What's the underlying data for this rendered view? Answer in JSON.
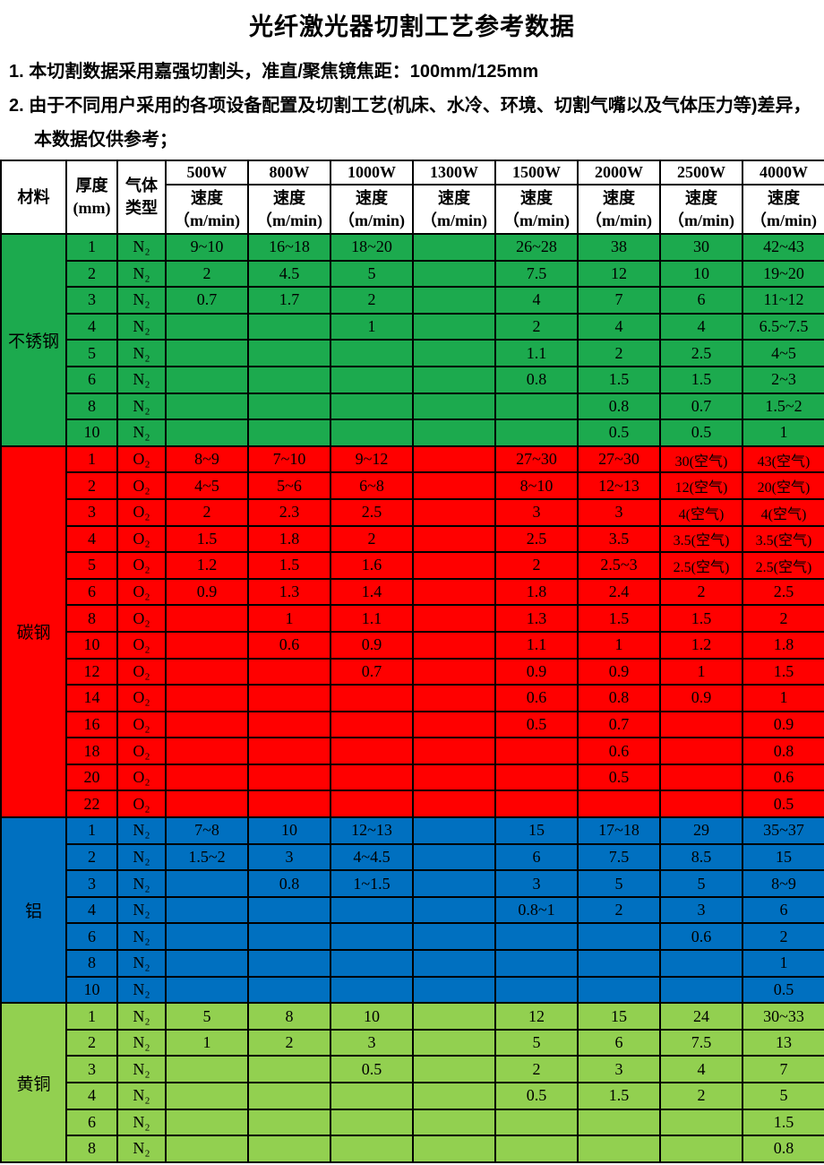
{
  "page": {
    "title": "光纤激光器切割工艺参考数据",
    "notes": [
      "1. 本切割数据采用嘉强切割头，准直/聚焦镜焦距：100mm/125mm",
      "2. 由于不同用户采用的各项设备配置及切割工艺(机床、水冷、环境、切割气嘴以及气体压力等)差异，本数据仅供参考；"
    ]
  },
  "table": {
    "header": {
      "material": "材料",
      "thickness_lines": [
        "厚度",
        "(mm)"
      ],
      "gas_lines": [
        "气体",
        "类型"
      ],
      "powers": [
        "500W",
        "800W",
        "1000W",
        "1300W",
        "1500W",
        "2000W",
        "2500W",
        "4000W"
      ],
      "speed_lines": [
        "速度",
        "（m/min)"
      ]
    },
    "sections": [
      {
        "material": "不锈钢",
        "color": "#1CAA4E",
        "rows": [
          {
            "t": "1",
            "gas": "N₂",
            "speeds": [
              "9~10",
              "16~18",
              "18~20",
              "",
              "26~28",
              "38",
              "30",
              "42~43"
            ]
          },
          {
            "t": "2",
            "gas": "N₂",
            "speeds": [
              "2",
              "4.5",
              "5",
              "",
              "7.5",
              "12",
              "10",
              "19~20"
            ]
          },
          {
            "t": "3",
            "gas": "N₂",
            "speeds": [
              "0.7",
              "1.7",
              "2",
              "",
              "4",
              "7",
              "6",
              "11~12"
            ]
          },
          {
            "t": "4",
            "gas": "N₂",
            "speeds": [
              "",
              "",
              "1",
              "",
              "2",
              "4",
              "4",
              "6.5~7.5"
            ]
          },
          {
            "t": "5",
            "gas": "N₂",
            "speeds": [
              "",
              "",
              "",
              "",
              "1.1",
              "2",
              "2.5",
              "4~5"
            ]
          },
          {
            "t": "6",
            "gas": "N₂",
            "speeds": [
              "",
              "",
              "",
              "",
              "0.8",
              "1.5",
              "1.5",
              "2~3"
            ]
          },
          {
            "t": "8",
            "gas": "N₂",
            "speeds": [
              "",
              "",
              "",
              "",
              "",
              "0.8",
              "0.7",
              "1.5~2"
            ]
          },
          {
            "t": "10",
            "gas": "N₂",
            "speeds": [
              "",
              "",
              "",
              "",
              "",
              "0.5",
              "0.5",
              "1"
            ]
          }
        ]
      },
      {
        "material": "碳钢",
        "color": "#FF0000",
        "rows": [
          {
            "t": "1",
            "gas": "O₂",
            "speeds": [
              "8~9",
              "7~10",
              "9~12",
              "",
              "27~30",
              "27~30",
              "30(空气)",
              "43(空气)"
            ]
          },
          {
            "t": "2",
            "gas": "O₂",
            "speeds": [
              "4~5",
              "5~6",
              "6~8",
              "",
              "8~10",
              "12~13",
              "12(空气)",
              "20(空气)"
            ]
          },
          {
            "t": "3",
            "gas": "O₂",
            "speeds": [
              "2",
              "2.3",
              "2.5",
              "",
              "3",
              "3",
              "4(空气)",
              "4(空气)"
            ]
          },
          {
            "t": "4",
            "gas": "O₂",
            "speeds": [
              "1.5",
              "1.8",
              "2",
              "",
              "2.5",
              "3.5",
              "3.5(空气)",
              "3.5(空气)"
            ]
          },
          {
            "t": "5",
            "gas": "O₂",
            "speeds": [
              "1.2",
              "1.5",
              "1.6",
              "",
              "2",
              "2.5~3",
              "2.5(空气)",
              "2.5(空气)"
            ]
          },
          {
            "t": "6",
            "gas": "O₂",
            "speeds": [
              "0.9",
              "1.3",
              "1.4",
              "",
              "1.8",
              "2.4",
              "2",
              "2.5"
            ]
          },
          {
            "t": "8",
            "gas": "O₂",
            "speeds": [
              "",
              "1",
              "1.1",
              "",
              "1.3",
              "1.5",
              "1.5",
              "2"
            ]
          },
          {
            "t": "10",
            "gas": "O₂",
            "speeds": [
              "",
              "0.6",
              "0.9",
              "",
              "1.1",
              "1",
              "1.2",
              "1.8"
            ]
          },
          {
            "t": "12",
            "gas": "O₂",
            "speeds": [
              "",
              "",
              "0.7",
              "",
              "0.9",
              "0.9",
              "1",
              "1.5"
            ]
          },
          {
            "t": "14",
            "gas": "O₂",
            "speeds": [
              "",
              "",
              "",
              "",
              "0.6",
              "0.8",
              "0.9",
              "1"
            ]
          },
          {
            "t": "16",
            "gas": "O₂",
            "speeds": [
              "",
              "",
              "",
              "",
              "0.5",
              "0.7",
              "",
              "0.9"
            ]
          },
          {
            "t": "18",
            "gas": "O₂",
            "speeds": [
              "",
              "",
              "",
              "",
              "",
              "0.6",
              "",
              "0.8"
            ]
          },
          {
            "t": "20",
            "gas": "O₂",
            "speeds": [
              "",
              "",
              "",
              "",
              "",
              "0.5",
              "",
              "0.6"
            ]
          },
          {
            "t": "22",
            "gas": "O₂",
            "speeds": [
              "",
              "",
              "",
              "",
              "",
              "",
              "",
              "0.5"
            ]
          }
        ]
      },
      {
        "material": "铝",
        "color": "#0070C0",
        "rows": [
          {
            "t": "1",
            "gas": "N₂",
            "speeds": [
              "7~8",
              "10",
              "12~13",
              "",
              "15",
              "17~18",
              "29",
              "35~37"
            ]
          },
          {
            "t": "2",
            "gas": "N₂",
            "speeds": [
              "1.5~2",
              "3",
              "4~4.5",
              "",
              "6",
              "7.5",
              "8.5",
              "15"
            ]
          },
          {
            "t": "3",
            "gas": "N₂",
            "speeds": [
              "",
              "0.8",
              "1~1.5",
              "",
              "3",
              "5",
              "5",
              "8~9"
            ]
          },
          {
            "t": "4",
            "gas": "N₂",
            "speeds": [
              "",
              "",
              "",
              "",
              "0.8~1",
              "2",
              "3",
              "6"
            ]
          },
          {
            "t": "6",
            "gas": "N₂",
            "speeds": [
              "",
              "",
              "",
              "",
              "",
              "",
              "0.6",
              "2"
            ]
          },
          {
            "t": "8",
            "gas": "N₂",
            "speeds": [
              "",
              "",
              "",
              "",
              "",
              "",
              "",
              "1"
            ]
          },
          {
            "t": "10",
            "gas": "N₂",
            "speeds": [
              "",
              "",
              "",
              "",
              "",
              "",
              "",
              "0.5"
            ]
          }
        ]
      },
      {
        "material": "黄铜",
        "color": "#92D050",
        "rows": [
          {
            "t": "1",
            "gas": "N₂",
            "speeds": [
              "5",
              "8",
              "10",
              "",
              "12",
              "15",
              "24",
              "30~33"
            ]
          },
          {
            "t": "2",
            "gas": "N₂",
            "speeds": [
              "1",
              "2",
              "3",
              "",
              "5",
              "6",
              "7.5",
              "13"
            ]
          },
          {
            "t": "3",
            "gas": "N₂",
            "speeds": [
              "",
              "",
              "0.5",
              "",
              "2",
              "3",
              "4",
              "7"
            ]
          },
          {
            "t": "4",
            "gas": "N₂",
            "speeds": [
              "",
              "",
              "",
              "",
              "0.5",
              "1.5",
              "2",
              "5"
            ]
          },
          {
            "t": "6",
            "gas": "N₂",
            "speeds": [
              "",
              "",
              "",
              "",
              "",
              "",
              "",
              "1.5"
            ]
          },
          {
            "t": "8",
            "gas": "N₂",
            "speeds": [
              "",
              "",
              "",
              "",
              "",
              "",
              "",
              "0.8"
            ]
          }
        ]
      }
    ]
  }
}
